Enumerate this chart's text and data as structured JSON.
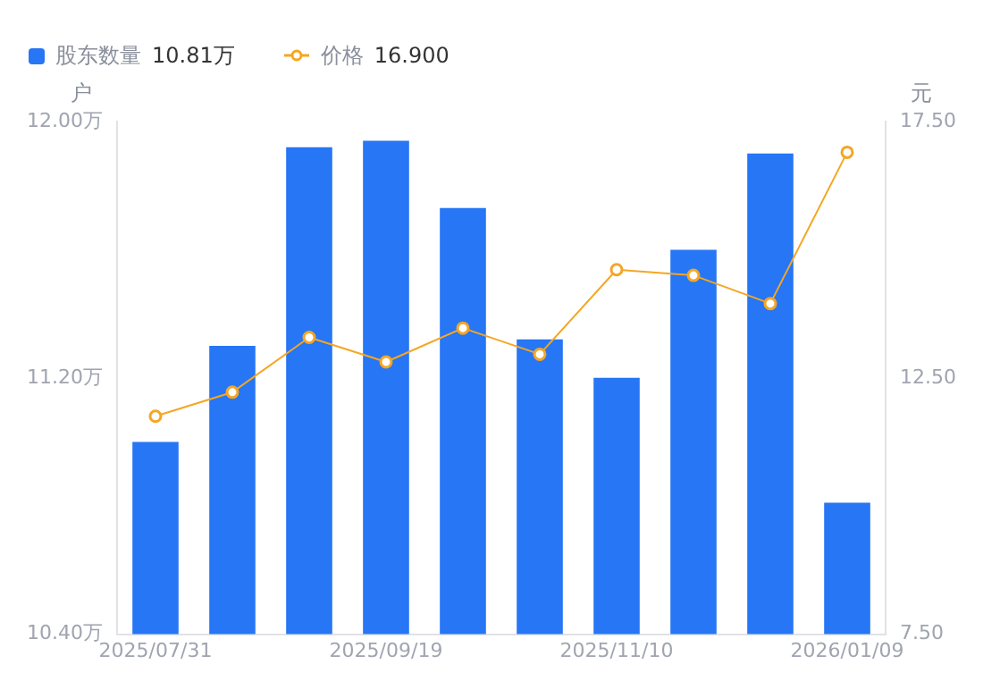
{
  "chart_data": {
    "type": "bar",
    "categories": [
      "2025/07/31",
      null,
      null,
      "2025/09/19",
      null,
      null,
      "2025/11/10",
      null,
      null,
      "2026/01/09"
    ],
    "series": [
      {
        "name": "股东数量",
        "color": "#2676f5",
        "values": [
          11.0,
          11.3,
          11.92,
          11.94,
          11.73,
          11.32,
          11.2,
          11.6,
          11.9,
          10.81
        ]
      },
      {
        "name": "价格",
        "type": "line",
        "axis": "y2",
        "color": "#f5a623",
        "values": [
          11.75,
          12.22,
          13.29,
          12.81,
          13.47,
          12.96,
          14.61,
          14.5,
          13.95,
          16.9
        ]
      }
    ],
    "annotations": [
      "10.81万",
      "16.900"
    ],
    "ylabel": "户",
    "y2label": "元",
    "ylim": [
      10.4,
      12.0
    ],
    "yticks": [
      {
        "value": 10.4,
        "label": "10.40万"
      },
      {
        "value": 11.2,
        "label": "11.20万"
      },
      {
        "value": 12.0,
        "label": "12.00万"
      }
    ],
    "y2lim": [
      7.5,
      17.5
    ],
    "y2ticks": [
      {
        "value": 7.5,
        "label": "7.50"
      },
      {
        "value": 12.5,
        "label": "12.50"
      },
      {
        "value": 17.5,
        "label": "17.50"
      }
    ],
    "legend": "top left",
    "marker": "circle",
    "line_style": "solid",
    "grid": false
  }
}
